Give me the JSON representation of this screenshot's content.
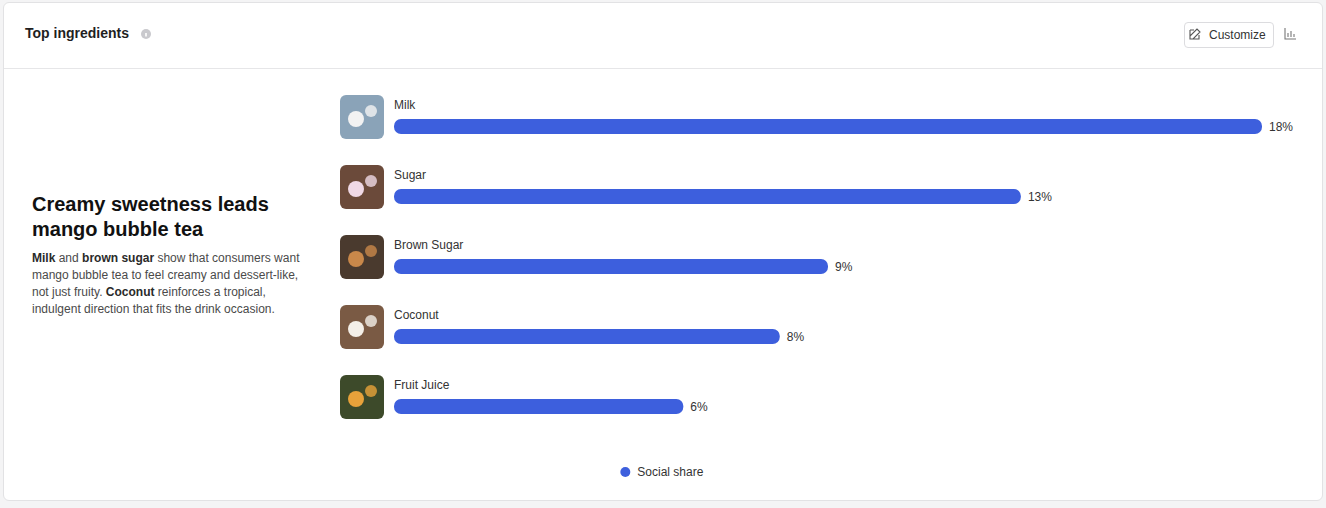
{
  "header": {
    "title": "Top ingredients",
    "button": "Customize"
  },
  "insight": {
    "title": "Creamy sweetness leads mango bubble tea",
    "body": [
      {
        "text": "Milk",
        "bold": true
      },
      {
        "text": " and ",
        "bold": false
      },
      {
        "text": "brown sugar",
        "bold": true
      },
      {
        "text": " show that consumers want mango bubble tea to feel creamy and dessert-like, not just fruity. ",
        "bold": false
      },
      {
        "text": "Coconut",
        "bold": true
      },
      {
        "text": " reinforces a tropical, indulgent direction that fits the drink occasion.",
        "bold": false
      }
    ]
  },
  "chart_data": {
    "type": "bar",
    "orientation": "horizontal",
    "categories": [
      "Milk",
      "Sugar",
      "Brown Sugar",
      "Coconut",
      "Fruit Juice"
    ],
    "series": [
      {
        "name": "Social share",
        "color": "#3d5fdd",
        "values": [
          18,
          13,
          9,
          8,
          6
        ],
        "value_labels": [
          "18%",
          "13%",
          "9%",
          "8%",
          "6%"
        ]
      }
    ],
    "xlim": [
      0,
      18
    ],
    "tick_labels": false,
    "grid": false,
    "data_labels": true,
    "legend": "bottom"
  }
}
